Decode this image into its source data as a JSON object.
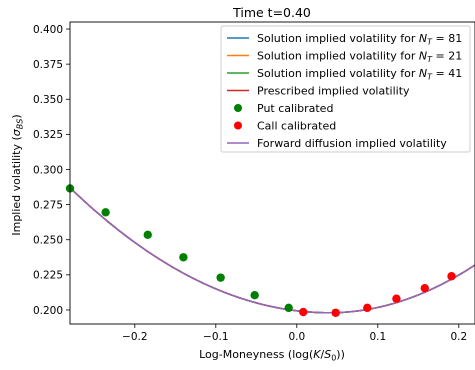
{
  "chart_data": {
    "type": "line",
    "title": "Time t=0.40",
    "xlabel": "Log-Moneyness (log(K/S₀))",
    "ylabel": "Implied volatility (σ_BS)",
    "xlim": [
      -0.28,
      0.22
    ],
    "ylim": [
      0.19,
      0.405
    ],
    "grid": false,
    "legend_position": "top-right",
    "x_ticks": [
      -0.2,
      -0.1,
      0.0,
      0.1,
      0.2
    ],
    "x_tick_labels": [
      "−0.2",
      "−0.1",
      "0.0",
      "0.1",
      "0.2"
    ],
    "y_ticks": [
      0.2,
      0.225,
      0.25,
      0.275,
      0.3,
      0.325,
      0.35,
      0.375,
      0.4
    ],
    "y_tick_labels": [
      "0.200",
      "0.225",
      "0.250",
      "0.275",
      "0.300",
      "0.325",
      "0.350",
      "0.375",
      "0.400"
    ],
    "curve": {
      "min_x": 0.04,
      "min_y": 0.198,
      "left_x": -0.28,
      "left_y": 0.287,
      "right_x": 0.22,
      "right_y": 0.232
    },
    "series": [
      {
        "name": "Solution implied volatility for N_T = 81",
        "color": "#1f77b4",
        "kind": "line"
      },
      {
        "name": "Solution implied volatility for N_T = 21",
        "color": "#ff7f0e",
        "kind": "line"
      },
      {
        "name": "Solution implied volatility for N_T = 41",
        "color": "#2ca02c",
        "kind": "line"
      },
      {
        "name": "Prescribed implied volatility",
        "color": "#d62728",
        "kind": "line"
      },
      {
        "name": "Put calibrated",
        "color": "#008000",
        "kind": "scatter",
        "x": [
          -0.28,
          -0.236,
          -0.184,
          -0.14,
          -0.094,
          -0.052,
          -0.01
        ],
        "y": [
          0.2865,
          0.2695,
          0.2535,
          0.2375,
          0.223,
          0.2105,
          0.2015
        ]
      },
      {
        "name": "Call calibrated",
        "color": "#ff0000",
        "kind": "scatter",
        "x": [
          0.008,
          0.048,
          0.087,
          0.123,
          0.158,
          0.191
        ],
        "y": [
          0.1985,
          0.198,
          0.2015,
          0.208,
          0.2155,
          0.224
        ]
      },
      {
        "name": "Forward diffusion implied volatility",
        "color": "#9467bd",
        "kind": "line"
      }
    ]
  },
  "legend": {
    "entries": [
      {
        "label": "Solution implied volatility for ",
        "sym": "N",
        "sub": "T",
        "tail": " = 81"
      },
      {
        "label": "Solution implied volatility for ",
        "sym": "N",
        "sub": "T",
        "tail": " = 21"
      },
      {
        "label": "Solution implied volatility for ",
        "sym": "N",
        "sub": "T",
        "tail": " = 41"
      },
      {
        "label": "Prescribed implied volatility",
        "sym": "",
        "sub": "",
        "tail": ""
      },
      {
        "label": "Put calibrated",
        "sym": "",
        "sub": "",
        "tail": ""
      },
      {
        "label": "Call calibrated",
        "sym": "",
        "sub": "",
        "tail": ""
      },
      {
        "label": "Forward diffusion implied volatility",
        "sym": "",
        "sub": "",
        "tail": ""
      }
    ]
  },
  "axis_text": {
    "xlabel_prefix": "Log-Moneyness (log(",
    "xlabel_K": "K",
    "xlabel_slash": "/",
    "xlabel_S": "S",
    "xlabel_sub": "0",
    "xlabel_suffix": "))",
    "ylabel_prefix": "Implied volatility (",
    "ylabel_sigma": "σ",
    "ylabel_sub": "BS",
    "ylabel_suffix": ")"
  }
}
